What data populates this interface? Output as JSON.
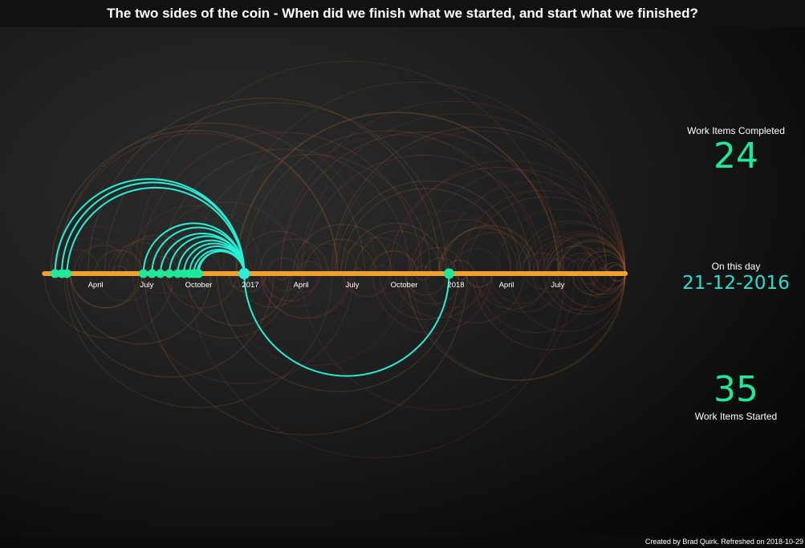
{
  "title": "The two sides of the coin - When did we finish what we started, and start what we finished?",
  "stats": {
    "completed_label": "Work Items Completed",
    "completed_value": "24",
    "day_label": "On this day",
    "day_value": "21-12-2016",
    "started_label": "Work Items Started",
    "started_value": "35"
  },
  "footer": "Created by Brad Quirk. Refreshed on 2018-10-29",
  "colors": {
    "timeline": "#f0a030",
    "highlight": "#27f0d8",
    "node": "#1ee89a",
    "background_arcs": "#b84840"
  },
  "chart_data": {
    "type": "arc",
    "x_axis": {
      "range": [
        "2017-01-01",
        "2018-10-29"
      ],
      "tick_labels": [
        "April",
        "July",
        "October",
        "2017",
        "April",
        "July",
        "October",
        "2018",
        "April",
        "July"
      ],
      "tick_dates": [
        "2016-04-01",
        "2016-07-01",
        "2016-10-01",
        "2017-01-01",
        "2017-04-01",
        "2017-07-01",
        "2017-10-01",
        "2018-01-01",
        "2018-04-01",
        "2018-07-01"
      ]
    },
    "selected_date": "2016-12-21",
    "completed_on_selected_start_dates": [
      "2016-01-20",
      "2016-02-01",
      "2016-02-10",
      "2016-06-25",
      "2016-07-10",
      "2016-07-25",
      "2016-08-10",
      "2016-08-25",
      "2016-09-05",
      "2016-09-15",
      "2016-09-22",
      "2016-09-28",
      "2016-10-01"
    ],
    "started_on_selected_end_dates": [
      "2017-12-20"
    ]
  }
}
